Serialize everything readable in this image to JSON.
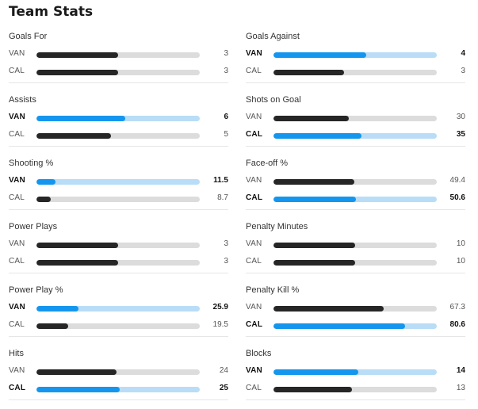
{
  "title": "Team Stats",
  "colors": {
    "leader_fill": "#1596ee",
    "leader_track": "#b9ddf7",
    "normal_fill": "#262626",
    "normal_track": "#dcdcdc"
  },
  "stats": [
    {
      "label": "Goals For",
      "rows": [
        {
          "team": "VAN",
          "value": "3",
          "fraction": 0.5,
          "lead": false
        },
        {
          "team": "CAL",
          "value": "3",
          "fraction": 0.5,
          "lead": false
        }
      ]
    },
    {
      "label": "Goals Against",
      "rows": [
        {
          "team": "VAN",
          "value": "4",
          "fraction": 0.57,
          "lead": true
        },
        {
          "team": "CAL",
          "value": "3",
          "fraction": 0.43,
          "lead": false
        }
      ]
    },
    {
      "label": "Assists",
      "rows": [
        {
          "team": "VAN",
          "value": "6",
          "fraction": 0.545,
          "lead": true
        },
        {
          "team": "CAL",
          "value": "5",
          "fraction": 0.455,
          "lead": false
        }
      ]
    },
    {
      "label": "Shots on Goal",
      "rows": [
        {
          "team": "VAN",
          "value": "30",
          "fraction": 0.46,
          "lead": false
        },
        {
          "team": "CAL",
          "value": "35",
          "fraction": 0.54,
          "lead": true
        }
      ]
    },
    {
      "label": "Shooting %",
      "rows": [
        {
          "team": "VAN",
          "value": "11.5",
          "fraction": 0.115,
          "lead": true
        },
        {
          "team": "CAL",
          "value": "8.7",
          "fraction": 0.087,
          "lead": false
        }
      ]
    },
    {
      "label": "Face-off %",
      "rows": [
        {
          "team": "VAN",
          "value": "49.4",
          "fraction": 0.494,
          "lead": false
        },
        {
          "team": "CAL",
          "value": "50.6",
          "fraction": 0.506,
          "lead": true
        }
      ]
    },
    {
      "label": "Power Plays",
      "rows": [
        {
          "team": "VAN",
          "value": "3",
          "fraction": 0.5,
          "lead": false
        },
        {
          "team": "CAL",
          "value": "3",
          "fraction": 0.5,
          "lead": false
        }
      ]
    },
    {
      "label": "Penalty Minutes",
      "rows": [
        {
          "team": "VAN",
          "value": "10",
          "fraction": 0.5,
          "lead": false
        },
        {
          "team": "CAL",
          "value": "10",
          "fraction": 0.5,
          "lead": false
        }
      ]
    },
    {
      "label": "Power Play %",
      "rows": [
        {
          "team": "VAN",
          "value": "25.9",
          "fraction": 0.259,
          "lead": true
        },
        {
          "team": "CAL",
          "value": "19.5",
          "fraction": 0.195,
          "lead": false
        }
      ]
    },
    {
      "label": "Penalty Kill %",
      "rows": [
        {
          "team": "VAN",
          "value": "67.3",
          "fraction": 0.673,
          "lead": false
        },
        {
          "team": "CAL",
          "value": "80.6",
          "fraction": 0.806,
          "lead": true
        }
      ]
    },
    {
      "label": "Hits",
      "rows": [
        {
          "team": "VAN",
          "value": "24",
          "fraction": 0.49,
          "lead": false
        },
        {
          "team": "CAL",
          "value": "25",
          "fraction": 0.51,
          "lead": true
        }
      ]
    },
    {
      "label": "Blocks",
      "rows": [
        {
          "team": "VAN",
          "value": "14",
          "fraction": 0.52,
          "lead": true
        },
        {
          "team": "CAL",
          "value": "13",
          "fraction": 0.48,
          "lead": false
        }
      ]
    }
  ]
}
